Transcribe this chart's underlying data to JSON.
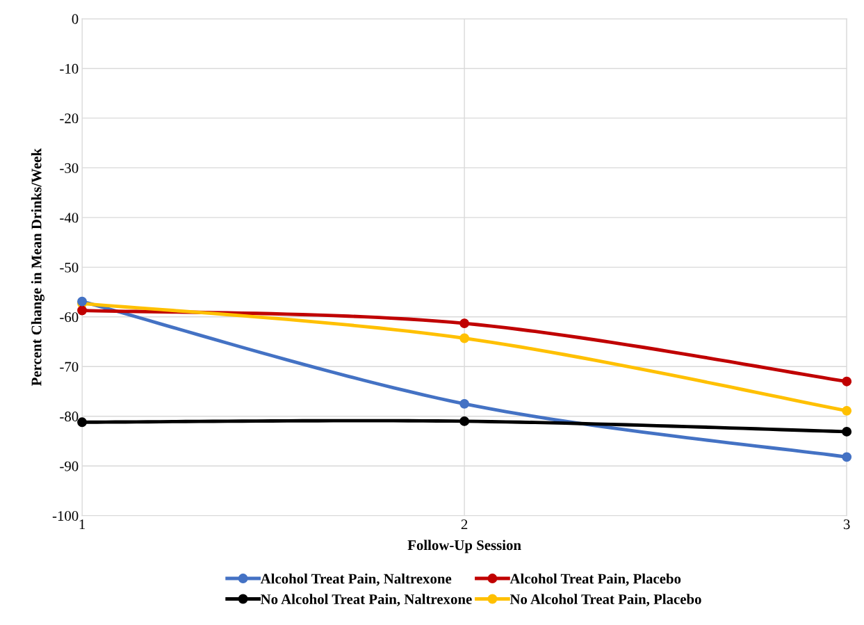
{
  "chart_data": {
    "type": "line",
    "xlabel": "Follow-Up Session",
    "ylabel": "Percent Change in Mean Drinks/Week",
    "x": [
      1,
      2,
      3
    ],
    "xlim": [
      1,
      3
    ],
    "xticks": [
      1,
      2,
      3
    ],
    "ylim": [
      -100,
      0
    ],
    "yticks": [
      -100,
      -90,
      -80,
      -70,
      -60,
      -50,
      -40,
      -30,
      -20,
      -10,
      0
    ],
    "grid": true,
    "legend": "bottom",
    "marker": "circle",
    "line_style": "solid",
    "series": [
      {
        "name": "Alcohol Treat Pain, Naltrexone",
        "color": "#4472c4",
        "values": [
          -56.9,
          -77.5,
          -88.2
        ]
      },
      {
        "name": "Alcohol Treat Pain, Placebo",
        "color": "#c00000",
        "values": [
          -58.7,
          -61.3,
          -73.0
        ]
      },
      {
        "name": "No Alcohol Treat Pain, Naltrexone",
        "color": "#000000",
        "values": [
          -81.2,
          -81.0,
          -83.1
        ]
      },
      {
        "name": "No Alcohol Treat Pain, Placebo",
        "color": "#ffc000",
        "values": [
          -57.3,
          -64.3,
          -78.9
        ]
      }
    ]
  }
}
